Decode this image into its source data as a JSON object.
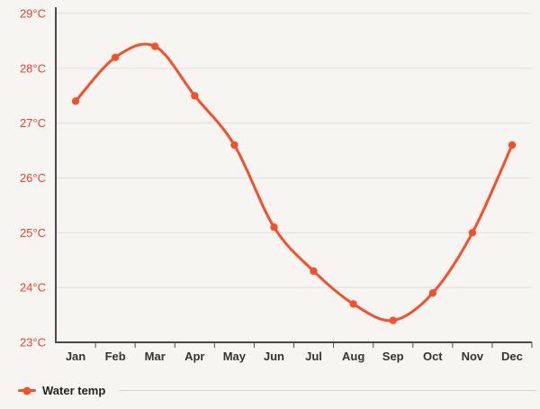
{
  "chart_data": {
    "type": "line",
    "categories": [
      "Jan",
      "Feb",
      "Mar",
      "Apr",
      "May",
      "Jun",
      "Jul",
      "Aug",
      "Sep",
      "Oct",
      "Nov",
      "Dec"
    ],
    "series": [
      {
        "name": "Water temp",
        "values": [
          27.4,
          28.2,
          28.4,
          27.5,
          26.6,
          25.1,
          24.3,
          23.7,
          23.4,
          23.9,
          25.0,
          26.6
        ]
      }
    ],
    "ylim": [
      23,
      29
    ],
    "y_tick_step": 1,
    "y_tick_labels": [
      "23°C",
      "24°C",
      "25°C",
      "26°C",
      "27°C",
      "28°C",
      "29°C"
    ],
    "grid": true,
    "legend_position": "bottom-left",
    "colors": {
      "line": "#f4502a",
      "marker": "#f4502a",
      "y_labels": "#e8432b",
      "x_labels": "#333333",
      "grid": "#e3dfd9",
      "axis": "#4a4a4a",
      "background": "#f7f5f1",
      "divider": "#d4d0ca"
    }
  }
}
